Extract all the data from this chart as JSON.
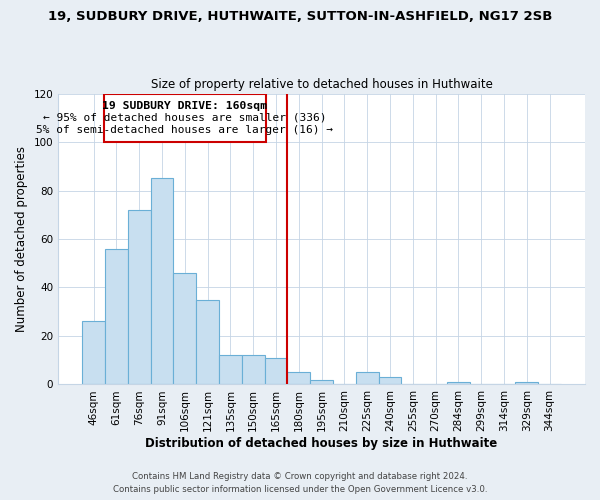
{
  "title1": "19, SUDBURY DRIVE, HUTHWAITE, SUTTON-IN-ASHFIELD, NG17 2SB",
  "title2": "Size of property relative to detached houses in Huthwaite",
  "xlabel": "Distribution of detached houses by size in Huthwaite",
  "ylabel": "Number of detached properties",
  "bar_labels": [
    "46sqm",
    "61sqm",
    "76sqm",
    "91sqm",
    "106sqm",
    "121sqm",
    "135sqm",
    "150sqm",
    "165sqm",
    "180sqm",
    "195sqm",
    "210sqm",
    "225sqm",
    "240sqm",
    "255sqm",
    "270sqm",
    "284sqm",
    "299sqm",
    "314sqm",
    "329sqm",
    "344sqm"
  ],
  "bar_values": [
    26,
    56,
    72,
    85,
    46,
    35,
    12,
    12,
    11,
    5,
    2,
    0,
    5,
    3,
    0,
    0,
    1,
    0,
    0,
    1,
    0
  ],
  "bar_color": "#c8dff0",
  "bar_edge_color": "#6aafd6",
  "ylim": [
    0,
    120
  ],
  "yticks": [
    0,
    20,
    40,
    60,
    80,
    100,
    120
  ],
  "vline_x": 8.5,
  "vline_color": "#cc0000",
  "annotation_title": "19 SUDBURY DRIVE: 160sqm",
  "annotation_line1": "← 95% of detached houses are smaller (336)",
  "annotation_line2": "5% of semi-detached houses are larger (16) →",
  "annotation_box_color": "#ffffff",
  "annotation_box_edge": "#cc0000",
  "footer1": "Contains HM Land Registry data © Crown copyright and database right 2024.",
  "footer2": "Contains public sector information licensed under the Open Government Licence v3.0.",
  "background_color": "#e8eef4",
  "plot_bg_color": "#ffffff"
}
